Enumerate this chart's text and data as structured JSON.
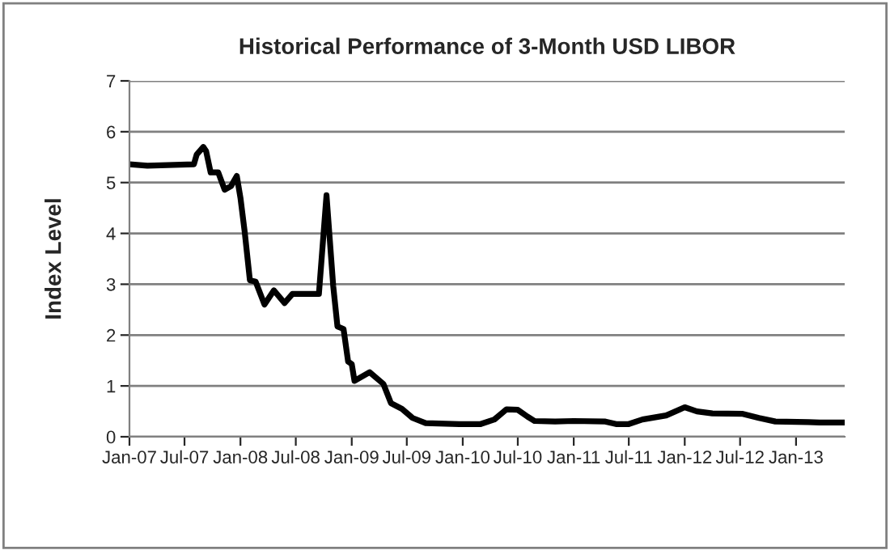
{
  "chart_data": {
    "type": "line",
    "title": "Historical Performance of 3-Month USD LIBOR",
    "ylabel": "Index Level",
    "x": [
      "2007-01-01",
      "2007-03-01",
      "2007-08-01",
      "2007-08-10",
      "2007-09-01",
      "2007-09-10",
      "2007-09-25",
      "2007-10-20",
      "2007-11-10",
      "2007-12-01",
      "2007-12-20",
      "2008-01-01",
      "2008-01-15",
      "2008-02-01",
      "2008-02-20",
      "2008-03-20",
      "2008-04-20",
      "2008-05-25",
      "2008-06-20",
      "2008-07-25",
      "2008-09-15",
      "2008-10-10",
      "2008-11-01",
      "2008-11-15",
      "2008-12-05",
      "2008-12-20",
      "2009-01-01",
      "2009-01-10",
      "2009-03-01",
      "2009-04-15",
      "2009-05-10",
      "2009-06-15",
      "2009-07-20",
      "2009-09-01",
      "2009-10-15",
      "2009-12-20",
      "2010-03-01",
      "2010-04-15",
      "2010-05-25",
      "2010-07-01",
      "2010-08-01",
      "2010-08-25",
      "2010-11-01",
      "2011-01-01",
      "2011-04-15",
      "2011-05-20",
      "2011-07-01",
      "2011-08-15",
      "2011-11-01",
      "2012-01-01",
      "2012-02-10",
      "2012-04-01",
      "2012-07-10",
      "2012-09-01",
      "2012-10-25",
      "2013-02-10",
      "2013-03-20",
      "2013-06-10"
    ],
    "series": [
      {
        "color": "#000000",
        "values": [
          5.36,
          5.33,
          5.36,
          5.55,
          5.7,
          5.62,
          5.2,
          5.2,
          4.86,
          4.93,
          5.13,
          4.7,
          4.03,
          3.08,
          3.05,
          2.6,
          2.88,
          2.63,
          2.81,
          2.81,
          2.81,
          4.75,
          2.97,
          2.17,
          2.12,
          1.48,
          1.43,
          1.1,
          1.27,
          1.04,
          0.66,
          0.55,
          0.37,
          0.27,
          0.26,
          0.25,
          0.25,
          0.34,
          0.54,
          0.53,
          0.4,
          0.31,
          0.3,
          0.31,
          0.3,
          0.25,
          0.25,
          0.34,
          0.42,
          0.58,
          0.5,
          0.46,
          0.45,
          0.37,
          0.3,
          0.29,
          0.28,
          0.28
        ]
      }
    ],
    "xlim": [
      "2007-01-01",
      "2013-06-10"
    ],
    "xticks": [
      {
        "value": "2007-01-01",
        "label": "Jan-07"
      },
      {
        "value": "2007-07-01",
        "label": "Jul-07"
      },
      {
        "value": "2008-01-01",
        "label": "Jan-08"
      },
      {
        "value": "2008-07-01",
        "label": "Jul-08"
      },
      {
        "value": "2009-01-01",
        "label": "Jan-09"
      },
      {
        "value": "2009-07-01",
        "label": "Jul-09"
      },
      {
        "value": "2010-01-01",
        "label": "Jan-10"
      },
      {
        "value": "2010-07-01",
        "label": "Jul-10"
      },
      {
        "value": "2011-01-01",
        "label": "Jan-11"
      },
      {
        "value": "2011-07-01",
        "label": "Jul-11"
      },
      {
        "value": "2012-01-01",
        "label": "Jan-12"
      },
      {
        "value": "2012-07-01",
        "label": "Jul-12"
      },
      {
        "value": "2013-01-01",
        "label": "Jan-13"
      }
    ],
    "ylim": [
      0,
      7
    ],
    "yticks": [
      0,
      1,
      2,
      3,
      4,
      5,
      6,
      7
    ],
    "grid": "y",
    "marker": "none",
    "line_style": "solid"
  }
}
